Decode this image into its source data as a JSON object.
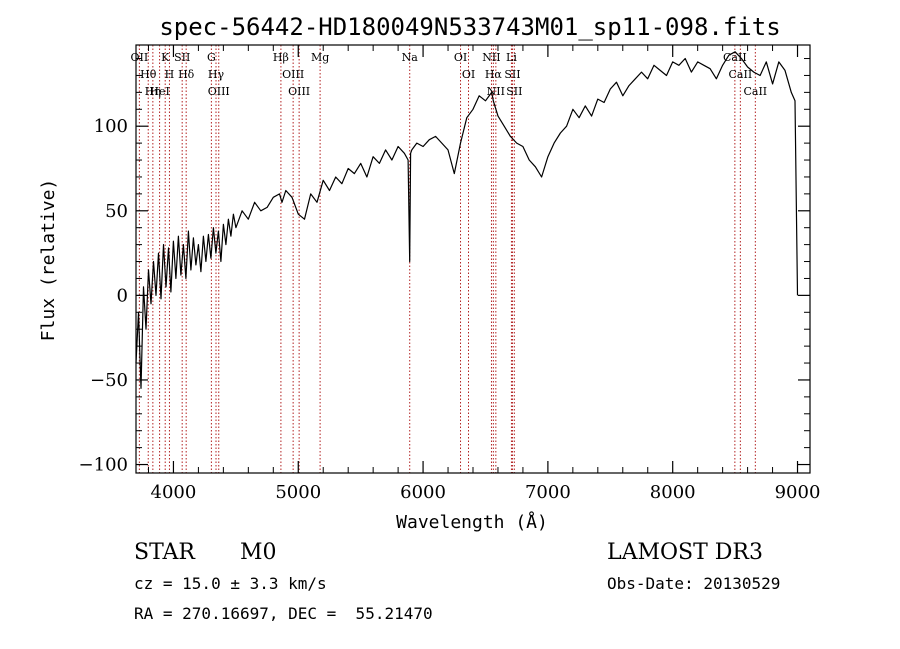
{
  "chart_data": {
    "type": "line",
    "title": "spec-56442-HD180049N533743M01_sp11-098.fits",
    "xlabel": "Wavelength (Å)",
    "ylabel": "Flux (relative)",
    "xlim": [
      3700,
      9100
    ],
    "ylim": [
      -105,
      148
    ],
    "xticks": [
      4000,
      5000,
      6000,
      7000,
      8000,
      9000
    ],
    "yticks": [
      -100,
      -50,
      0,
      50,
      100
    ],
    "grid": false,
    "series": [
      {
        "x": [
          3700,
          3720,
          3740,
          3760,
          3780,
          3800,
          3820,
          3840,
          3860,
          3880,
          3900,
          3920,
          3940,
          3960,
          3980,
          4000,
          4020,
          4040,
          4060,
          4080,
          4100,
          4120,
          4140,
          4160,
          4180,
          4200,
          4220,
          4240,
          4260,
          4280,
          4300,
          4320,
          4340,
          4360,
          4380,
          4400,
          4420,
          4440,
          4460,
          4480,
          4500,
          4550,
          4600,
          4650,
          4700,
          4750,
          4800,
          4850,
          4870,
          4900,
          4950,
          5000,
          5050,
          5100,
          5150,
          5200,
          5250,
          5300,
          5350,
          5400,
          5450,
          5500,
          5550,
          5600,
          5650,
          5700,
          5750,
          5800,
          5850,
          5880,
          5893,
          5900,
          5910,
          5950,
          6000,
          6050,
          6100,
          6150,
          6200,
          6250,
          6300,
          6350,
          6400,
          6450,
          6500,
          6550,
          6563,
          6600,
          6650,
          6700,
          6750,
          6800,
          6850,
          6900,
          6950,
          7000,
          7050,
          7100,
          7150,
          7200,
          7250,
          7300,
          7350,
          7400,
          7450,
          7500,
          7550,
          7600,
          7650,
          7700,
          7750,
          7800,
          7850,
          7900,
          7950,
          8000,
          8050,
          8100,
          8150,
          8200,
          8250,
          8300,
          8350,
          8400,
          8450,
          8500,
          8550,
          8600,
          8650,
          8700,
          8750,
          8800,
          8850,
          8900,
          8950,
          8980,
          9000
        ],
        "y": [
          -40,
          -10,
          -55,
          5,
          -20,
          15,
          -5,
          20,
          0,
          25,
          -2,
          30,
          5,
          28,
          2,
          32,
          10,
          35,
          12,
          30,
          10,
          38,
          15,
          34,
          18,
          30,
          14,
          35,
          20,
          36,
          22,
          40,
          25,
          38,
          20,
          42,
          30,
          45,
          35,
          48,
          40,
          50,
          45,
          55,
          50,
          52,
          58,
          60,
          55,
          62,
          58,
          48,
          45,
          60,
          55,
          68,
          62,
          70,
          66,
          75,
          72,
          78,
          70,
          82,
          78,
          86,
          80,
          88,
          84,
          80,
          20,
          84,
          86,
          90,
          88,
          92,
          94,
          90,
          86,
          72,
          90,
          105,
          110,
          118,
          115,
          120,
          115,
          106,
          100,
          94,
          90,
          88,
          80,
          76,
          70,
          82,
          90,
          96,
          100,
          110,
          105,
          112,
          106,
          116,
          114,
          122,
          126,
          118,
          124,
          128,
          132,
          128,
          136,
          133,
          130,
          138,
          136,
          140,
          132,
          138,
          136,
          134,
          128,
          136,
          142,
          144,
          140,
          135,
          132,
          130,
          138,
          125,
          138,
          133,
          120,
          115,
          0
        ]
      }
    ],
    "lines": [
      {
        "name": "OII",
        "x": 3727
      },
      {
        "name": "Hθ",
        "x": 3798
      },
      {
        "name": "Hη",
        "x": 3835
      },
      {
        "name": "K",
        "x": 3934
      },
      {
        "name": "H",
        "x": 3968
      },
      {
        "name": "HeI",
        "x": 3889
      },
      {
        "name": "SII",
        "x": 4070
      },
      {
        "name": "Hδ",
        "x": 4102
      },
      {
        "name": "G",
        "x": 4304
      },
      {
        "name": "Hγ",
        "x": 4341
      },
      {
        "name": "OIII",
        "x": 4363
      },
      {
        "name": "Hβ",
        "x": 4861
      },
      {
        "name": "OIII",
        "x": 4959
      },
      {
        "name": "OIII",
        "x": 5007
      },
      {
        "name": "Mg",
        "x": 5175
      },
      {
        "name": "Na",
        "x": 5893
      },
      {
        "name": "OI",
        "x": 6300
      },
      {
        "name": "OI",
        "x": 6364
      },
      {
        "name": "NII",
        "x": 6548
      },
      {
        "name": "Hα",
        "x": 6563
      },
      {
        "name": "NII",
        "x": 6583
      },
      {
        "name": "Li",
        "x": 6708
      },
      {
        "name": "SII",
        "x": 6716
      },
      {
        "name": "SII",
        "x": 6731
      },
      {
        "name": "CaII",
        "x": 8498
      },
      {
        "name": "CaII",
        "x": 8542
      },
      {
        "name": "CaII",
        "x": 8662
      }
    ]
  },
  "info": {
    "class": "STAR",
    "subclass": "M0",
    "survey": "LAMOST DR3",
    "cz": "cz = 15.0 ± 3.3 km/s",
    "obs_date": "Obs-Date: 20130529",
    "coords": "RA = 270.16697, DEC =  55.21470"
  }
}
